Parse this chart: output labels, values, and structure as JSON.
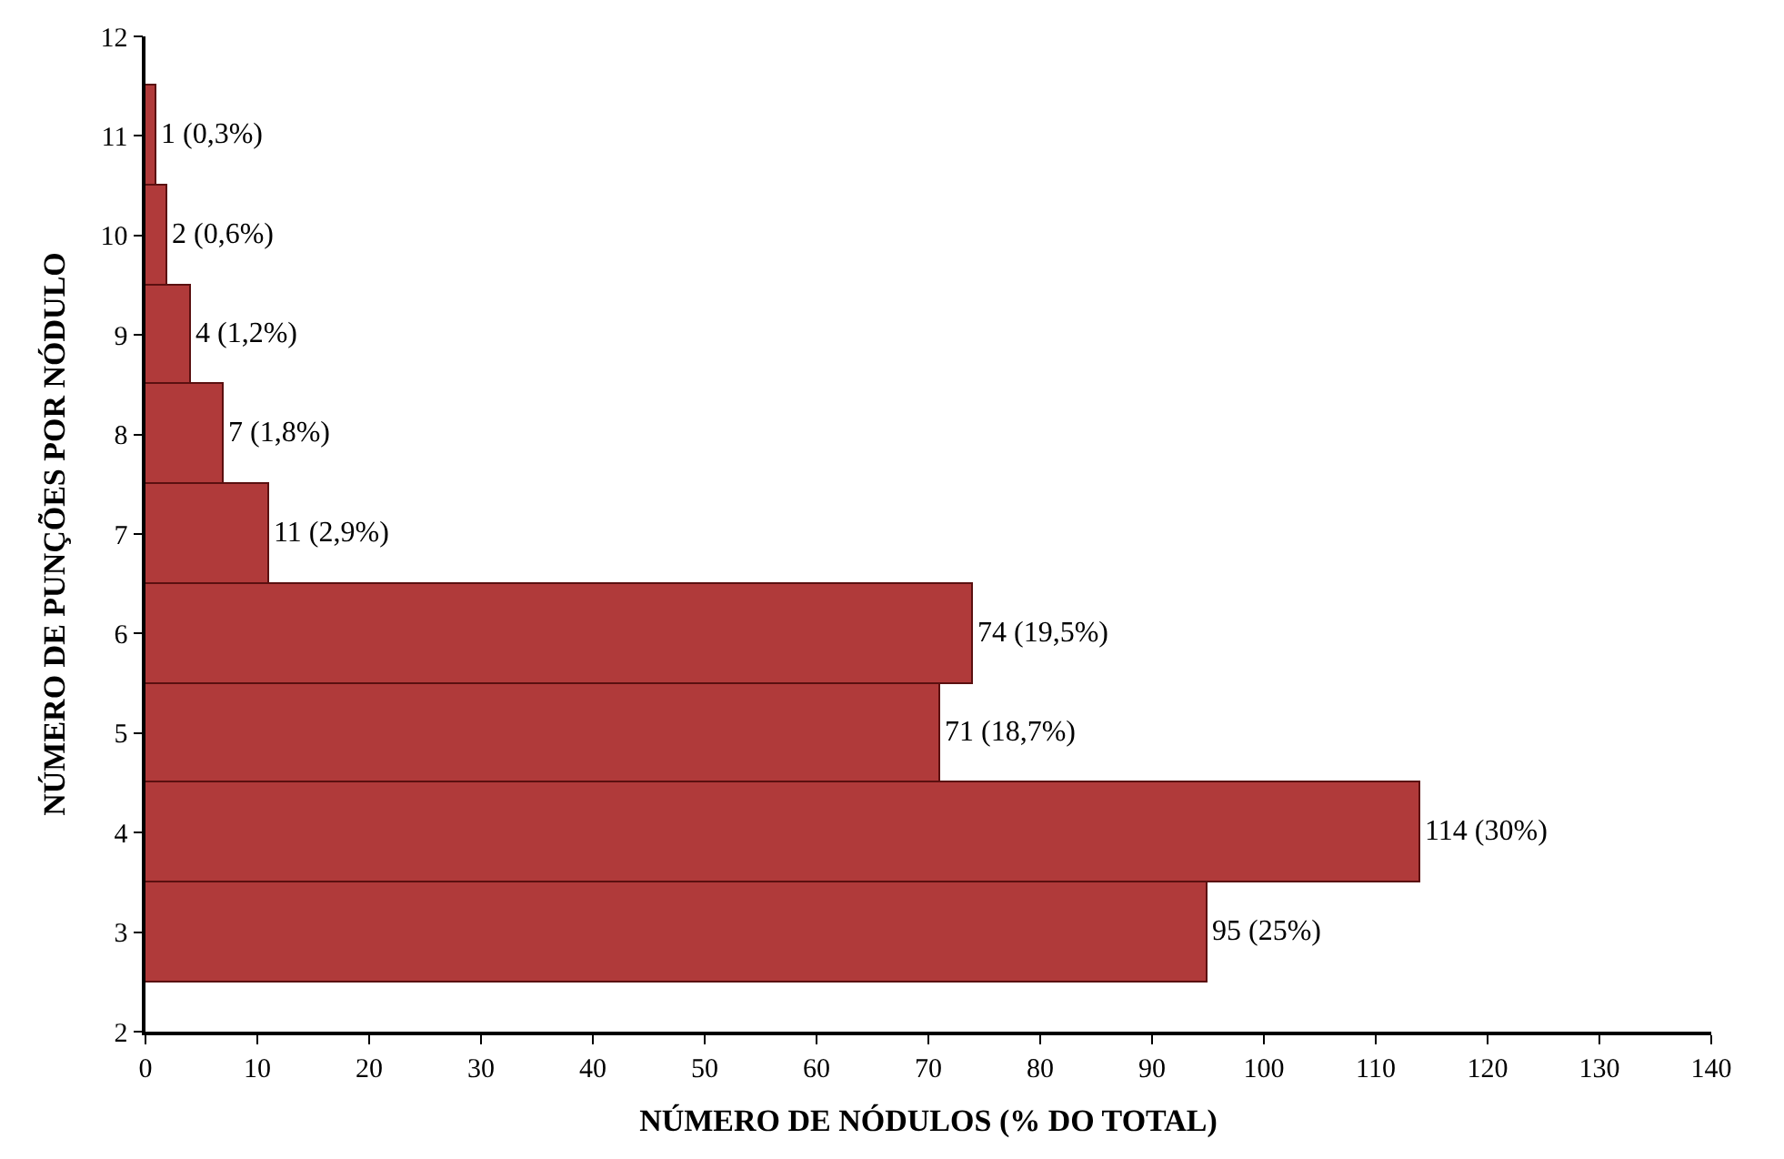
{
  "chart_data": {
    "type": "bar",
    "orientation": "horizontal",
    "xlabel": "NÚMERO DE NÓDULOS (% DO TOTAL)",
    "ylabel": "NÚMERO DE PUNÇÕES POR NÓDULO",
    "x": [
      3,
      4,
      5,
      6,
      7,
      8,
      9,
      10,
      11
    ],
    "values": [
      95,
      114,
      71,
      74,
      11,
      7,
      4,
      2,
      1
    ],
    "value_labels": [
      "95 (25%)",
      "114 (30%)",
      "71 (18,7%)",
      "74 (19,5%)",
      "11 (2,9%)",
      "7 (1,8%)",
      "4 (1,2%)",
      "2 (0,6%)",
      "1 (0,3%)"
    ],
    "color": "#b03a3a",
    "xlim": [
      0,
      140
    ],
    "xticks": [
      0,
      10,
      20,
      30,
      40,
      50,
      60,
      70,
      80,
      90,
      100,
      110,
      120,
      130,
      140
    ],
    "ylim": [
      2,
      12
    ],
    "yticks": [
      2,
      3,
      4,
      5,
      6,
      7,
      8,
      9,
      10,
      11,
      12
    ],
    "legend": false
  }
}
